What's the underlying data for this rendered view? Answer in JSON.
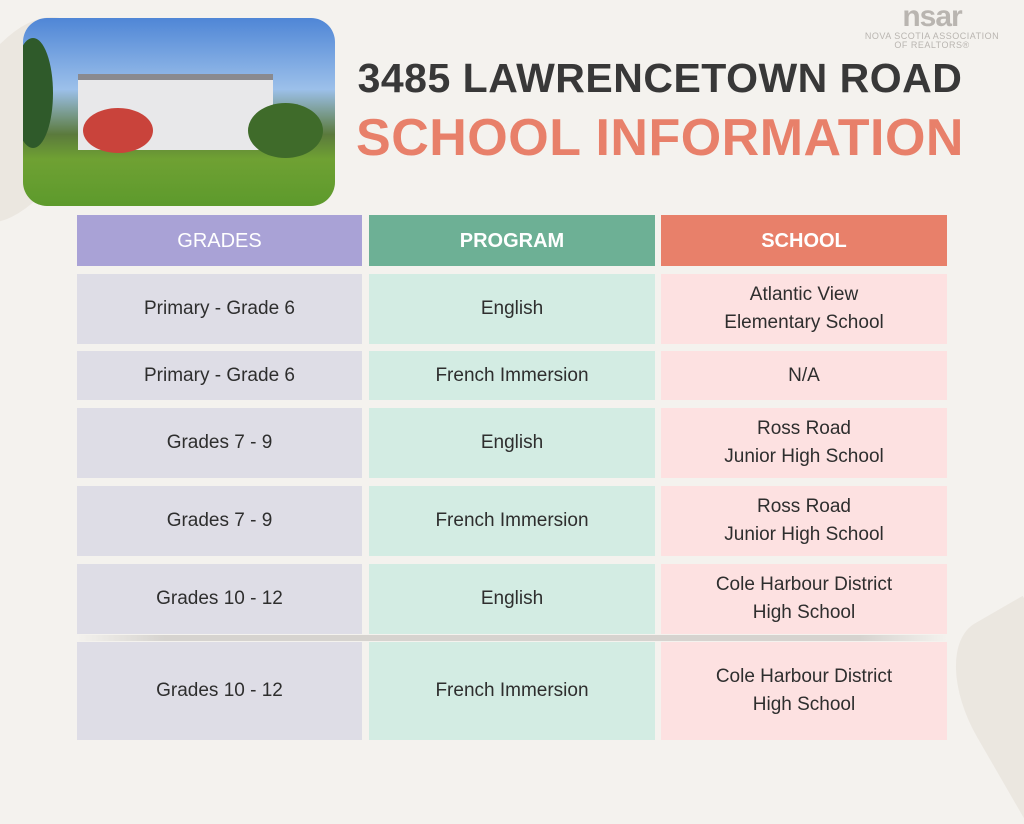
{
  "header": {
    "title": "3485 LAWRENCETOWN ROAD",
    "subtitle": "SCHOOL INFORMATION"
  },
  "logo": {
    "mark": "nsar",
    "line1": "NOVA SCOTIA ASSOCIATION",
    "line2": "OF REALTORS®"
  },
  "colors": {
    "grades_header": "#a9a2d6",
    "program_header": "#6db095",
    "school_header": "#e8806a",
    "title": "#383838",
    "subtitle": "#e8806a"
  },
  "table": {
    "headers": [
      "GRADES",
      "PROGRAM",
      "SCHOOL"
    ],
    "rows": [
      {
        "grades": "Primary - Grade 6",
        "program": "English",
        "school": [
          "Atlantic View",
          "Elementary School"
        ]
      },
      {
        "grades": "Primary - Grade 6",
        "program": "French Immersion",
        "school": [
          "N/A"
        ]
      },
      {
        "grades": "Grades 7 - 9",
        "program": "English",
        "school": [
          "Ross Road",
          "Junior High School"
        ]
      },
      {
        "grades": "Grades 7 - 9",
        "program": "French Immersion",
        "school": [
          "Ross Road",
          "Junior High School"
        ]
      },
      {
        "grades": "Grades 10 - 12",
        "program": "English",
        "school": [
          "Cole Harbour District",
          "High School"
        ]
      },
      {
        "grades": "Grades 10 - 12",
        "program": "French Immersion",
        "school": [
          "Cole Harbour District",
          "High School"
        ]
      }
    ]
  }
}
